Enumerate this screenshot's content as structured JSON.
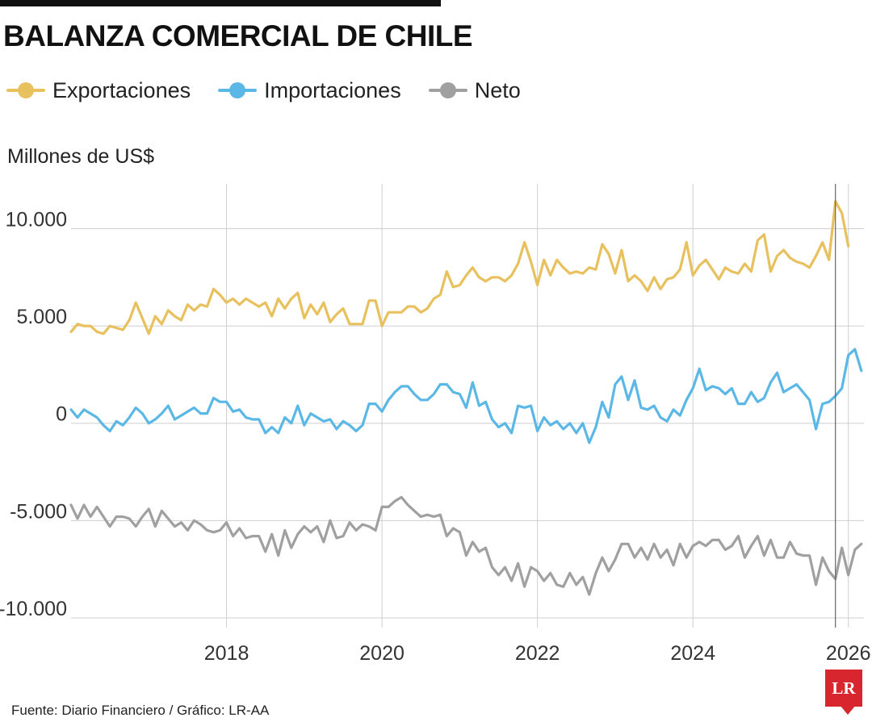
{
  "header": {
    "title": "BALANZA COMERCIAL DE CHILE",
    "unit_label": "Millones de US$",
    "source": "Fuente: Diario Financiero / Gráfico: LR-AA",
    "logo_text": "LR"
  },
  "chart_data": {
    "type": "line",
    "title": "BALANZA COMERCIAL DE CHILE",
    "ylabel": "Millones de US$",
    "xlabel": "",
    "ylim": [
      -10500,
      12300
    ],
    "xlim": [
      2016.0,
      2026.2
    ],
    "grid": true,
    "legend_position": "top-left",
    "yticks": [
      10000,
      5000,
      0,
      -5000,
      -10000
    ],
    "ytick_labels": [
      "10.000",
      "5.000",
      "0",
      "-5.000",
      "-10.000"
    ],
    "xticks": [
      2018,
      2020,
      2022,
      2024,
      2026
    ],
    "xtick_labels": [
      "2018",
      "2020",
      "2022",
      "2024",
      "2026"
    ],
    "x_start": "2016-01",
    "x_step": "month",
    "series": [
      {
        "name": "Exportaciones",
        "color": "#e8c15e",
        "values": [
          4700,
          5100,
          5000,
          5000,
          4700,
          4600,
          5000,
          4900,
          4800,
          5300,
          6200,
          5400,
          4600,
          5500,
          5100,
          5800,
          5500,
          5300,
          6100,
          5800,
          6100,
          6000,
          6900,
          6600,
          6200,
          6400,
          6100,
          6400,
          6200,
          6000,
          6200,
          5500,
          6400,
          5900,
          6400,
          6700,
          5400,
          6100,
          5600,
          6200,
          5200,
          5600,
          5900,
          5100,
          5100,
          5100,
          6300,
          6300,
          5000,
          5700,
          5700,
          5700,
          6000,
          6000,
          5700,
          5900,
          6400,
          6600,
          7800,
          7000,
          7100,
          7600,
          8000,
          7500,
          7300,
          7500,
          7500,
          7300,
          7600,
          8200,
          9300,
          8300,
          7100,
          8400,
          7600,
          8400,
          8000,
          7700,
          7800,
          7700,
          8000,
          7900,
          9200,
          8700,
          7700,
          8900,
          7300,
          7600,
          7300,
          6800,
          7500,
          6900,
          7400,
          7500,
          7900,
          9300,
          7600,
          8100,
          8400,
          7900,
          7400,
          8000,
          7800,
          7700,
          8200,
          7800,
          9400,
          9700,
          7800,
          8600,
          8900,
          8500,
          8300,
          8200,
          8000,
          8600,
          9300,
          8400,
          11400,
          10800,
          9100
        ]
      },
      {
        "name": "Importaciones",
        "color": "#5bb8e6",
        "values": [
          700,
          300,
          700,
          500,
          300,
          -100,
          -400,
          100,
          -100,
          300,
          800,
          500,
          0,
          200,
          500,
          900,
          200,
          400,
          600,
          800,
          500,
          500,
          1300,
          1100,
          1100,
          600,
          700,
          300,
          200,
          200,
          -500,
          -200,
          -500,
          300,
          0,
          900,
          -100,
          500,
          300,
          100,
          200,
          -300,
          100,
          -100,
          -400,
          -100,
          1000,
          1000,
          600,
          1200,
          1600,
          1900,
          1900,
          1500,
          1200,
          1200,
          1500,
          2000,
          2000,
          1600,
          1500,
          800,
          2100,
          900,
          1100,
          200,
          -200,
          0,
          -500,
          900,
          800,
          900,
          -400,
          300,
          -100,
          100,
          -300,
          0,
          -500,
          0,
          -1000,
          -200,
          1100,
          300,
          2000,
          2400,
          1200,
          2200,
          800,
          700,
          900,
          300,
          100,
          700,
          400,
          1200,
          1800,
          2800,
          1700,
          1900,
          1800,
          1500,
          1800,
          1000,
          1000,
          1600,
          1100,
          1300,
          2100,
          2600,
          1600,
          1800,
          2000,
          1600,
          1200,
          -300,
          1000,
          1100,
          1400,
          1800,
          3500,
          3800,
          2700
        ]
      },
      {
        "name": "Neto",
        "color": "#a0a0a0",
        "values": [
          -4200,
          -4900,
          -4200,
          -4800,
          -4300,
          -4800,
          -5300,
          -4800,
          -4800,
          -4900,
          -5300,
          -4800,
          -4400,
          -5300,
          -4500,
          -4900,
          -5300,
          -5100,
          -5500,
          -5000,
          -5200,
          -5500,
          -5600,
          -5500,
          -5100,
          -5800,
          -5400,
          -5900,
          -5800,
          -5800,
          -6600,
          -5700,
          -6800,
          -5500,
          -6400,
          -5700,
          -5300,
          -5600,
          -5300,
          -6100,
          -5000,
          -5900,
          -5800,
          -5100,
          -5500,
          -5200,
          -5300,
          -5500,
          -4300,
          -4300,
          -4000,
          -3800,
          -4200,
          -4500,
          -4800,
          -4700,
          -4800,
          -4700,
          -5800,
          -5400,
          -5600,
          -6800,
          -6100,
          -6600,
          -6400,
          -7400,
          -7800,
          -7400,
          -8100,
          -7200,
          -8400,
          -7400,
          -7600,
          -8100,
          -7700,
          -8300,
          -8400,
          -7700,
          -8300,
          -7900,
          -8800,
          -7700,
          -6900,
          -7600,
          -7000,
          -6200,
          -6200,
          -6900,
          -6400,
          -7000,
          -6200,
          -6900,
          -6500,
          -7300,
          -6200,
          -6900,
          -6300,
          -6100,
          -6300,
          -6000,
          -6000,
          -6500,
          -6300,
          -5800,
          -6900,
          -6300,
          -5800,
          -6800,
          -6000,
          -6900,
          -6900,
          -6100,
          -6700,
          -6800,
          -6800,
          -8300,
          -6900,
          -7600,
          -8000,
          -6400,
          -7800,
          -6500,
          -6200
        ]
      }
    ]
  }
}
